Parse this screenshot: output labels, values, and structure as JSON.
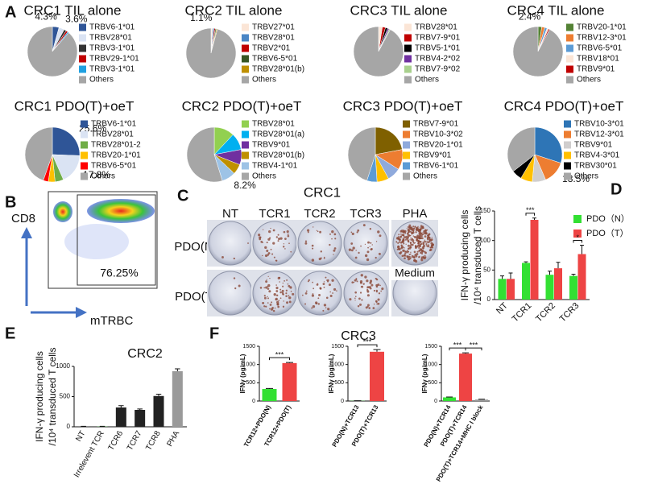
{
  "flow_panel": {
    "panel": "B",
    "y_label": "CD8",
    "x_label": "mTRBC",
    "gate_label": "76.25%"
  },
  "elispot_panel": {
    "panel": "C",
    "title": "CRC1",
    "columns": [
      "NT",
      "TCR1",
      "TCR2",
      "TCR3",
      "PHA"
    ],
    "rows": [
      "PDO(N)",
      "PDO(T)"
    ],
    "note": "Medium"
  },
  "chart_data": [
    {
      "type": "pie",
      "panel": "A",
      "title": "CRC1 TIL alone",
      "categories": [
        "TRBV6-1*01",
        "TRBV28*01",
        "TRBV3-1*01",
        "TRBV29-1*01",
        "TRBV3-1*01",
        "Others"
      ],
      "values": [
        4.3,
        3.6,
        1.5,
        1.2,
        0.8,
        88.6
      ],
      "value_labels": [
        "4.3%",
        "3.6%",
        null,
        null,
        null,
        null
      ],
      "colors": [
        "#2f5597",
        "#dae3f3",
        "#333333",
        "#c00000",
        "#1fa0e0",
        "#a6a6a6"
      ]
    },
    {
      "type": "pie",
      "title": "CRC2 TIL alone",
      "categories": [
        "TRBV27*01",
        "TRBV28*01",
        "TRBV2*01",
        "TRBV6-5*01",
        "TRBV28*01(b)",
        "Others"
      ],
      "values": [
        1.1,
        0.9,
        0.8,
        0.7,
        0.6,
        95.9
      ],
      "value_labels": [
        "1.1%",
        null,
        null,
        null,
        null,
        null
      ],
      "colors": [
        "#fbe5d6",
        "#4a86c5",
        "#c00000",
        "#375623",
        "#bf9000",
        "#a6a6a6"
      ]
    },
    {
      "type": "pie",
      "title": "CRC3 TIL alone",
      "categories": [
        "TRBV28*01",
        "TRBV7-9*01",
        "TRBV5-1*01",
        "TRBV4-2*02",
        "TRBV7-9*02",
        "Others"
      ],
      "values": [
        2.5,
        2.0,
        1.5,
        1.0,
        0.8,
        92.2
      ],
      "colors": [
        "#fbe5d6",
        "#c00000",
        "#000000",
        "#7030a0",
        "#a9d18e",
        "#a6a6a6"
      ]
    },
    {
      "type": "pie",
      "title": "CRC4  TIL alone",
      "categories": [
        "TRBV20-1*01",
        "TRBV12-3*01",
        "TRBV6-5*01",
        "TRBV18*01",
        "TRBV9*01",
        "Others"
      ],
      "values": [
        2.4,
        2.0,
        1.5,
        1.0,
        0.8,
        92.3
      ],
      "value_labels": [
        "2.4%",
        null,
        null,
        null,
        null,
        null
      ],
      "colors": [
        "#548235",
        "#ed7d31",
        "#5b9bd5",
        "#fbe5d6",
        "#c00000",
        "#a6a6a6"
      ]
    },
    {
      "type": "pie",
      "title": "CRC1 PDO(T)+oeT",
      "categories": [
        "TRBV6-1*01",
        "TRBV28*01",
        "TRBV28*01-2",
        "TRBV20-1*01",
        "TRBV6-5*01",
        "Others"
      ],
      "values": [
        25.6,
        17.8,
        5,
        4,
        3,
        44.6
      ],
      "value_labels": [
        "25.6%",
        "17.8%",
        null,
        null,
        null,
        null
      ],
      "colors": [
        "#2f5597",
        "#dae3f3",
        "#70ad47",
        "#ffc000",
        "#ff0000",
        "#a6a6a6"
      ]
    },
    {
      "type": "pie",
      "title": "CRC2 PDO(T)+oeT",
      "categories": [
        "TRBV28*01",
        "TRBV28*01(a)",
        "TRBV9*01",
        "TRBV28*01(b)",
        "TRBV4-1*01",
        "Others"
      ],
      "values": [
        12,
        10,
        9,
        6,
        8.2,
        54.8
      ],
      "value_labels": [
        null,
        null,
        null,
        null,
        "8.2%",
        null
      ],
      "colors": [
        "#92d050",
        "#00b0f0",
        "#7030a0",
        "#bf9000",
        "#9dc3e6",
        "#a6a6a6"
      ]
    },
    {
      "type": "pie",
      "title": "CRC3 PDO(T)+oeT",
      "categories": [
        "TRBV7-9*01",
        "TRBV10-3*02",
        "TRBV20-1*01",
        "TRBV9*01",
        "TRBV6-1*01",
        "Others"
      ],
      "values": [
        22,
        12,
        8,
        7,
        6,
        45
      ],
      "colors": [
        "#7f6000",
        "#ed7d31",
        "#8faadc",
        "#ffc000",
        "#5b9bd5",
        "#a6a6a6"
      ]
    },
    {
      "type": "pie",
      "title": "CRC4 PDO(T)+oeT",
      "categories": [
        "TRBV10-3*01",
        "TRBV12-3*01",
        "TRBV9*01",
        "TRBV4-3*01",
        "TRBV30*01",
        "Others"
      ],
      "values": [
        30,
        13.5,
        8,
        7,
        6,
        35.5
      ],
      "value_labels": [
        null,
        "13.5%",
        null,
        null,
        null,
        null
      ],
      "colors": [
        "#2e75b6",
        "#ed7d31",
        "#d0cece",
        "#ffc000",
        "#000000",
        "#a6a6a6"
      ]
    },
    {
      "type": "bar",
      "panel": "D",
      "y_label": [
        "IFN-γ producing cells",
        "/10⁴ transduced T cells"
      ],
      "categories": [
        "NT",
        "TCR1",
        "TCR2",
        "TCR3"
      ],
      "series": [
        {
          "name": "PDO（N）",
          "color": "#33e033",
          "values": [
            35,
            62,
            42,
            40
          ],
          "errors": [
            5,
            2,
            6,
            3
          ]
        },
        {
          "name": "PDO（T）",
          "color": "#ee4444",
          "values": [
            35,
            135,
            53,
            77
          ],
          "errors": [
            10,
            3,
            10,
            15
          ]
        }
      ],
      "ylim": [
        0,
        150
      ],
      "yticks": [
        0,
        50,
        100,
        150
      ],
      "annotations": [
        "***",
        "*"
      ]
    },
    {
      "type": "bar",
      "panel": "E",
      "title": "CRC2",
      "y_label": [
        "IFN-γ producing cells",
        "/10⁴ transduced T cells"
      ],
      "categories": [
        "NT",
        "Irrelevent TCR",
        "TCR6",
        "TCR7",
        "TCR8",
        "PHA"
      ],
      "series": [
        {
          "values": [
            5,
            5,
            320,
            280,
            510,
            920
          ],
          "errors": [
            3,
            3,
            30,
            15,
            30,
            40
          ],
          "colors": [
            "#222222",
            "#2a8a2a",
            "#222222",
            "#222222",
            "#222222",
            "#9a9a9a"
          ]
        }
      ],
      "ylim": [
        0,
        1000
      ],
      "yticks": [
        0,
        500,
        1000
      ]
    },
    {
      "type": "bar",
      "panel": "F",
      "title": "CRC3",
      "y_label": [
        "IFNγ (pg/mL)"
      ],
      "categories": [
        "TCR12+PDO(N)",
        "TCR12+PDO(T)"
      ],
      "series": [
        {
          "values": [
            330,
            1040
          ],
          "errors": [
            15,
            15
          ],
          "colors": [
            "#33e033",
            "#ee4444"
          ]
        }
      ],
      "ylim": [
        0,
        1500
      ],
      "yticks": [
        0,
        500,
        1000,
        1500
      ],
      "annotations": [
        "***"
      ]
    },
    {
      "type": "bar",
      "y_label": [
        "IFNγ (pg/mL)"
      ],
      "categories": [
        "PDO(N)+TCR13",
        "PDO(T)+TCR13"
      ],
      "series": [
        {
          "values": [
            5,
            1350
          ],
          "errors": [
            3,
            60
          ],
          "colors": [
            "#33e033",
            "#ee4444"
          ]
        }
      ],
      "ylim": [
        0,
        1500
      ],
      "yticks": [
        0,
        500,
        1000,
        1500
      ],
      "annotations": [
        "***"
      ]
    },
    {
      "type": "bar",
      "y_label": [
        "IFNγ (pg/mL)"
      ],
      "categories": [
        "PDO(N)+TCR14",
        "PDO(T)+TCR14",
        "PDO(T)+TCR14+MHC I block"
      ],
      "series": [
        {
          "values": [
            100,
            1300,
            40
          ],
          "errors": [
            10,
            20,
            10
          ],
          "colors": [
            "#33e033",
            "#ee4444",
            "#9a9a9a"
          ]
        }
      ],
      "ylim": [
        0,
        1500
      ],
      "yticks": [
        0,
        500,
        1000,
        1500
      ],
      "annotations": [
        "***",
        "***"
      ]
    }
  ]
}
